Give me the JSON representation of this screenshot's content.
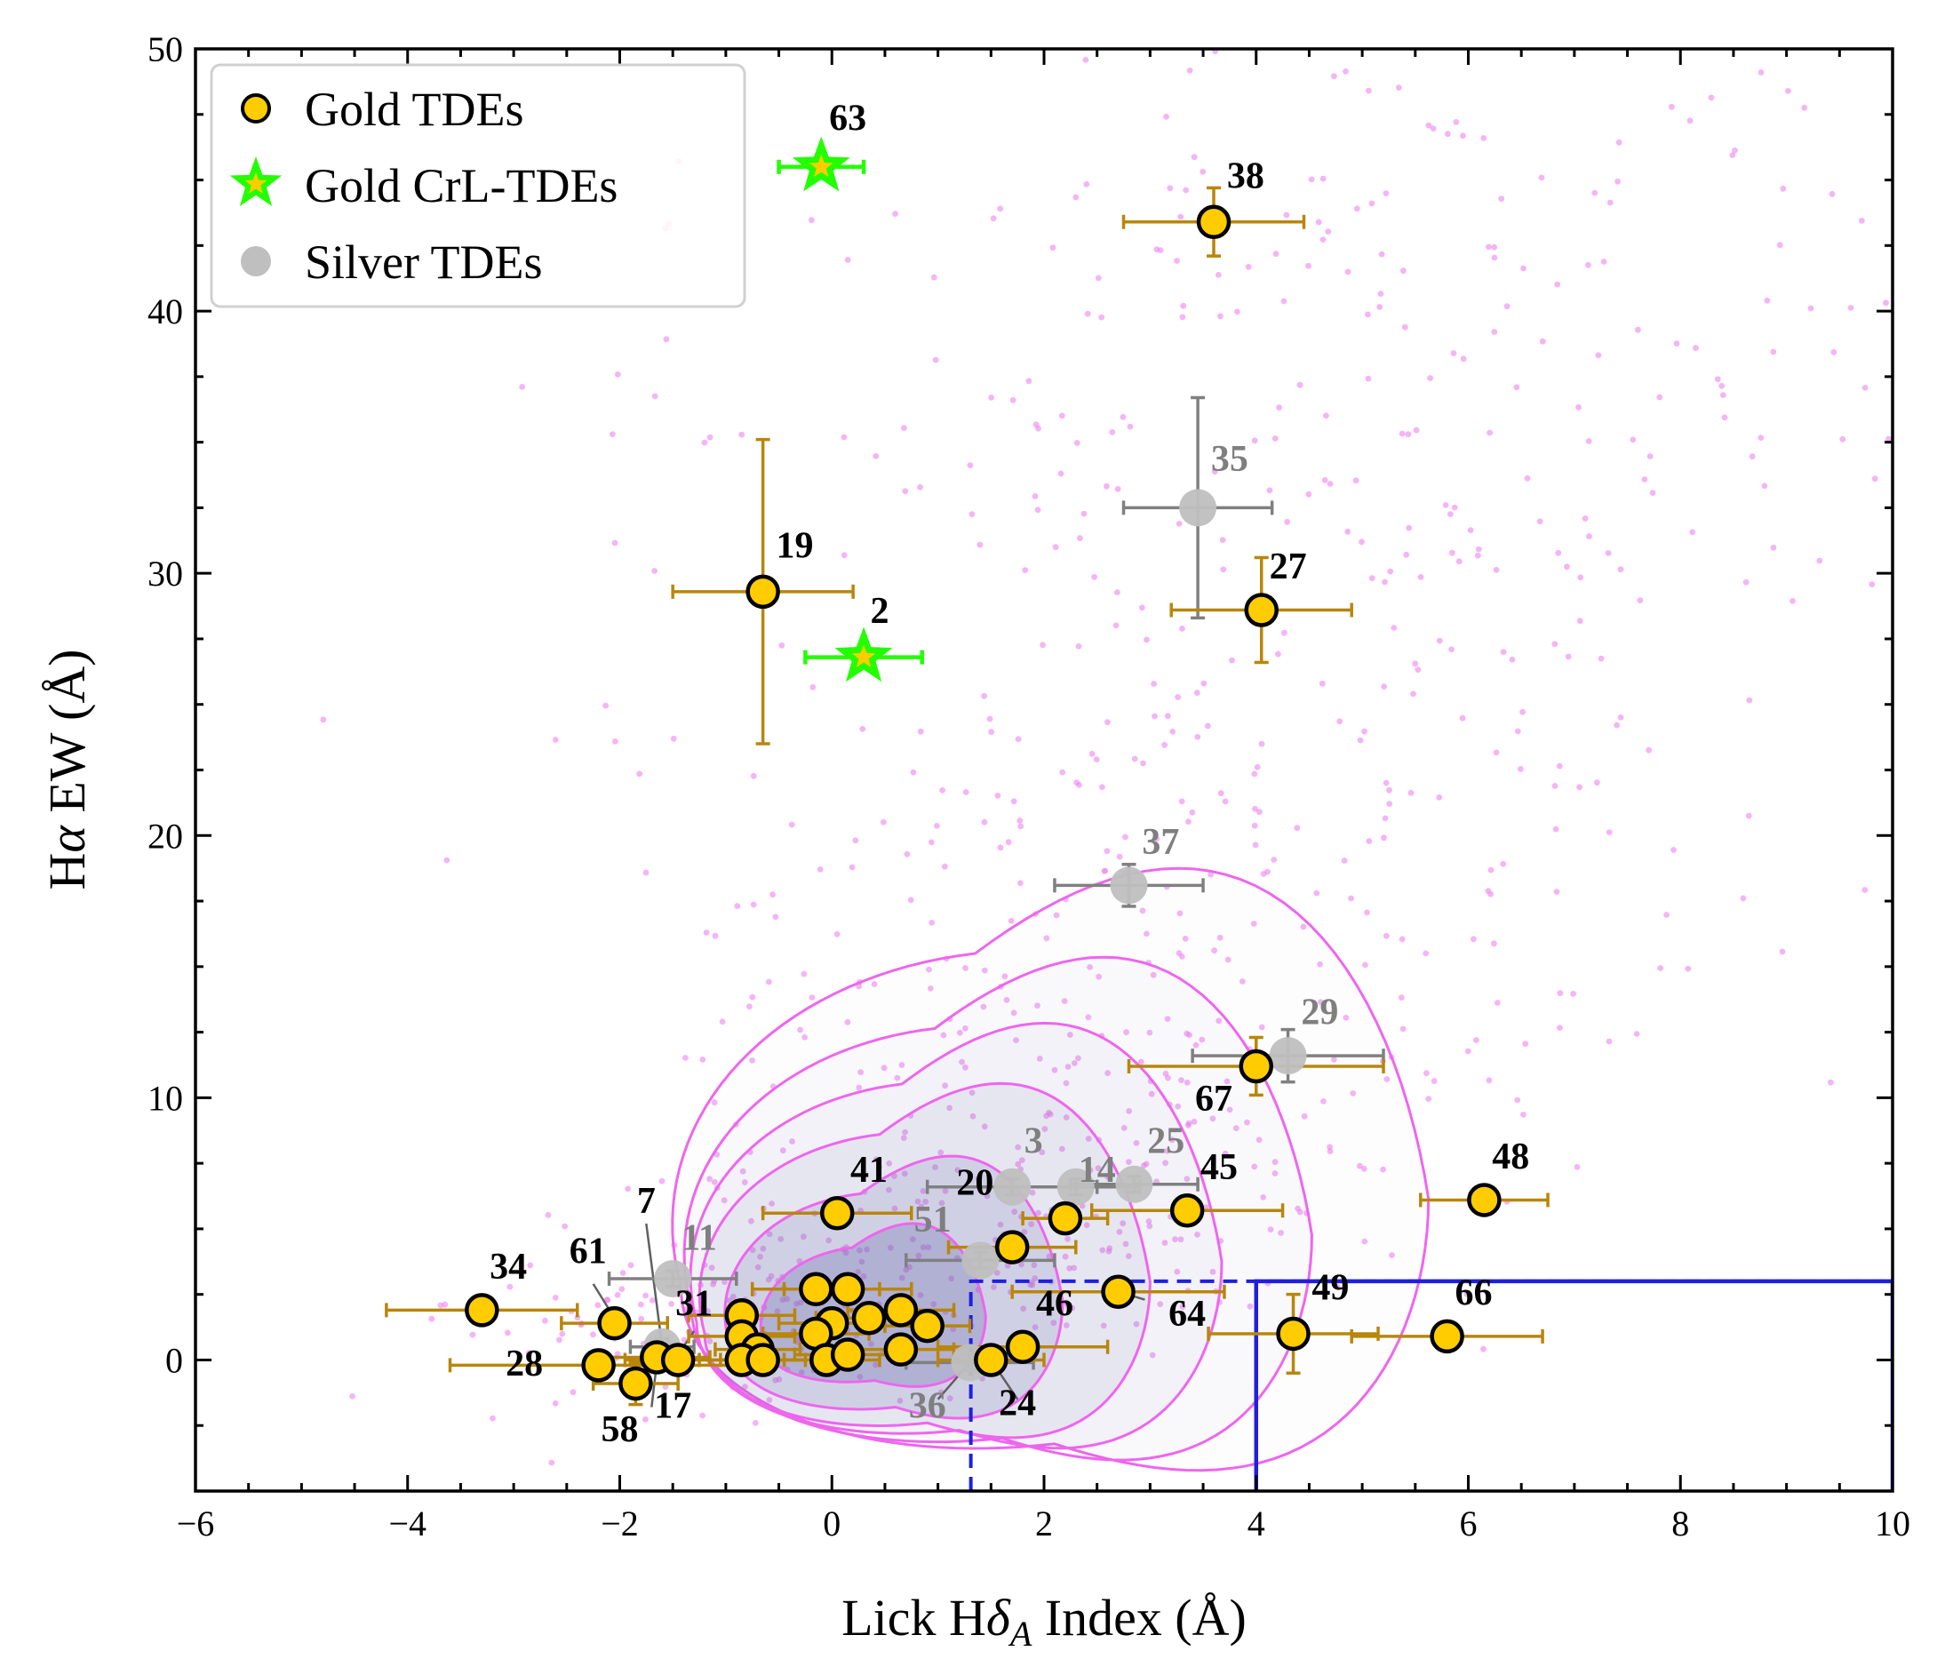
{
  "chart_data": {
    "type": "scatter",
    "xlabel": "Lick Hδ_A Index (Å)",
    "xlabel_parts": {
      "pre": "Lick H",
      "greek": "δ",
      "sub": "A",
      "post": " Index (Å)"
    },
    "ylabel": "Hα EW (Å)",
    "ylabel_parts": {
      "pre": "H",
      "greek": "α",
      "post": " EW (Å)"
    },
    "xlim": [
      -6,
      10
    ],
    "ylim": [
      -5,
      50
    ],
    "xticks": [
      -6,
      -4,
      -2,
      0,
      2,
      4,
      6,
      8,
      10
    ],
    "xtick_labels": [
      "−6",
      "−4",
      "−2",
      "0",
      "2",
      "4",
      "6",
      "8",
      "10"
    ],
    "yticks": [
      0,
      10,
      20,
      30,
      40,
      50
    ],
    "ytick_labels": [
      "0",
      "10",
      "20",
      "30",
      "40",
      "50"
    ],
    "grid": false,
    "legend": {
      "position": "top-left",
      "entries": [
        {
          "label": "Gold TDEs",
          "marker": "circle",
          "color": "#ffcc00"
        },
        {
          "label": "Gold CrL-TDEs",
          "marker": "star",
          "color": "#22ff00"
        },
        {
          "label": "Silver TDEs",
          "marker": "circle",
          "color": "#bfbfbf"
        }
      ]
    },
    "colors": {
      "gold_fill": "#ffcc00",
      "gold_err": "#b8860b",
      "crl_star": "#22ff00",
      "silver_fill": "#bfbfbf",
      "silver_err": "#808080",
      "silver_label": "#7f7f7f",
      "background_points": "#ee82ee",
      "contour_line": "#ee66ee",
      "contour_fill": "#7070b0",
      "selection_box": "#1f1fe0"
    },
    "series": [
      {
        "name": "Gold TDEs",
        "points": [
          {
            "id": "38",
            "x": 3.6,
            "y": 43.4,
            "xerr": 0.85,
            "yerr": 1.3
          },
          {
            "id": "19",
            "x": -0.65,
            "y": 29.3,
            "xerr": 0.85,
            "yerr": 5.8
          },
          {
            "id": "27",
            "x": 4.05,
            "y": 28.6,
            "xerr": 0.85,
            "yerr": 2.0
          },
          {
            "id": "67",
            "x": 4.0,
            "y": 11.2,
            "xerr": 1.2,
            "yerr": 1.1
          },
          {
            "id": "48",
            "x": 6.15,
            "y": 6.1,
            "xerr": 0.6,
            "yerr": 0.3
          },
          {
            "id": "41",
            "x": 0.05,
            "y": 5.6,
            "xerr": 0.7,
            "yerr": 0.3
          },
          {
            "id": "45",
            "x": 3.35,
            "y": 5.7,
            "xerr": 0.9,
            "yerr": 0.3
          },
          {
            "id": "20",
            "x": 1.7,
            "y": 4.3,
            "xerr": 0.6,
            "yerr": 0.3
          },
          {
            "id": "",
            "x": 2.2,
            "y": 5.4,
            "xerr": 0.4,
            "yerr": 0.3
          },
          {
            "id": "34",
            "x": -3.3,
            "y": 1.9,
            "xerr": 0.9,
            "yerr": 0.3
          },
          {
            "id": "61",
            "x": -2.05,
            "y": 1.4,
            "xerr": 0.5,
            "yerr": 0.3
          },
          {
            "id": "28",
            "x": -2.2,
            "y": -0.2,
            "xerr": 1.4,
            "yerr": 0.3
          },
          {
            "id": "58",
            "x": -1.85,
            "y": -0.9,
            "xerr": 0.4,
            "yerr": 0.8
          },
          {
            "id": "17",
            "x": -1.65,
            "y": 0.1,
            "xerr": 0.5,
            "yerr": 0.3
          },
          {
            "id": "31",
            "x": -1.45,
            "y": 0.0,
            "xerr": 0.5,
            "yerr": 0.3
          },
          {
            "id": "",
            "x": -0.85,
            "y": 1.7,
            "xerr": 0.5,
            "yerr": 0.3
          },
          {
            "id": "",
            "x": -0.85,
            "y": 0.9,
            "xerr": 0.5,
            "yerr": 0.3
          },
          {
            "id": "",
            "x": -0.7,
            "y": 0.4,
            "xerr": 0.4,
            "yerr": 0.3
          },
          {
            "id": "",
            "x": -0.85,
            "y": 0.0,
            "xerr": 0.4,
            "yerr": 0.3
          },
          {
            "id": "",
            "x": -0.65,
            "y": 0.0,
            "xerr": 0.4,
            "yerr": 0.3
          },
          {
            "id": "",
            "x": -0.15,
            "y": 2.7,
            "xerr": 0.6,
            "yerr": 0.3
          },
          {
            "id": "",
            "x": 0.15,
            "y": 2.7,
            "xerr": 0.6,
            "yerr": 0.3
          },
          {
            "id": "",
            "x": 0.0,
            "y": 1.4,
            "xerr": 0.5,
            "yerr": 0.3
          },
          {
            "id": "",
            "x": -0.15,
            "y": 1.0,
            "xerr": 0.5,
            "yerr": 0.3
          },
          {
            "id": "",
            "x": -0.05,
            "y": 0.0,
            "xerr": 0.5,
            "yerr": 0.3
          },
          {
            "id": "",
            "x": 0.15,
            "y": 0.2,
            "xerr": 0.5,
            "yerr": 0.3
          },
          {
            "id": "",
            "x": 0.35,
            "y": 1.6,
            "xerr": 0.5,
            "yerr": 0.3
          },
          {
            "id": "",
            "x": 0.65,
            "y": 1.9,
            "xerr": 0.5,
            "yerr": 0.3
          },
          {
            "id": "",
            "x": 0.9,
            "y": 1.3,
            "xerr": 0.4,
            "yerr": 0.3
          },
          {
            "id": "",
            "x": 0.65,
            "y": 0.4,
            "xerr": 0.5,
            "yerr": 0.3
          },
          {
            "id": "46",
            "x": 1.8,
            "y": 0.5,
            "xerr": 0.8,
            "yerr": 0.3
          },
          {
            "id": "24",
            "x": 1.5,
            "y": 0.0,
            "xerr": 0.5,
            "yerr": 0.3
          },
          {
            "id": "64",
            "x": 2.7,
            "y": 2.6,
            "xerr": 1.0,
            "yerr": 0.3
          },
          {
            "id": "49",
            "x": 4.35,
            "y": 1.0,
            "xerr": 0.8,
            "yerr": 1.5
          },
          {
            "id": "66",
            "x": 5.8,
            "y": 0.9,
            "xerr": 0.9,
            "yerr": 0.3
          }
        ]
      },
      {
        "name": "Gold CrL-TDEs",
        "points": [
          {
            "id": "63",
            "x": -0.1,
            "y": 45.5,
            "xerr": 0.4,
            "yerr": 0.3
          },
          {
            "id": "2",
            "x": 0.3,
            "y": 26.8,
            "xerr": 0.55,
            "yerr": 0.3
          }
        ]
      },
      {
        "name": "Silver TDEs",
        "points": [
          {
            "id": "35",
            "x": 3.45,
            "y": 32.5,
            "xerr": 0.7,
            "yerr": 4.2
          },
          {
            "id": "37",
            "x": 2.8,
            "y": 18.1,
            "xerr": 0.7,
            "yerr": 0.8
          },
          {
            "id": "29",
            "x": 4.3,
            "y": 11.6,
            "xerr": 0.9,
            "yerr": 1.0
          },
          {
            "id": "3",
            "x": 1.7,
            "y": 6.6,
            "xerr": 0.8,
            "yerr": 0.3
          },
          {
            "id": "14",
            "x": 2.3,
            "y": 6.6,
            "xerr": 0.6,
            "yerr": 0.3
          },
          {
            "id": "25",
            "x": 2.85,
            "y": 6.7,
            "xerr": 0.6,
            "yerr": 0.3
          },
          {
            "id": "51",
            "x": 1.4,
            "y": 3.8,
            "xerr": 0.7,
            "yerr": 0.3
          },
          {
            "id": "11",
            "x": -1.5,
            "y": 3.1,
            "xerr": 0.6,
            "yerr": 0.3
          },
          {
            "id": "36",
            "x": 1.3,
            "y": -0.1,
            "xerr": 0.6,
            "yerr": 0.3
          },
          {
            "id": "7",
            "x": -1.6,
            "y": 0.5,
            "xerr": 0.3,
            "yerr": 0.3
          }
        ]
      }
    ],
    "point_labels": [
      {
        "id": "63",
        "lx": 0.15,
        "ly": 46.9,
        "color": "black"
      },
      {
        "id": "38",
        "lx": 3.9,
        "ly": 44.7,
        "color": "black"
      },
      {
        "id": "19",
        "lx": -0.35,
        "ly": 30.6,
        "color": "black"
      },
      {
        "id": "2",
        "lx": 0.45,
        "ly": 28.1,
        "color": "black"
      },
      {
        "id": "27",
        "lx": 4.3,
        "ly": 29.8,
        "color": "black"
      },
      {
        "id": "35",
        "lx": 3.75,
        "ly": 33.9,
        "color": "gray"
      },
      {
        "id": "37",
        "lx": 3.1,
        "ly": 19.3,
        "color": "gray"
      },
      {
        "id": "29",
        "lx": 4.6,
        "ly": 12.8,
        "color": "gray"
      },
      {
        "id": "67",
        "lx": 3.6,
        "ly": 9.5,
        "color": "black"
      },
      {
        "id": "48",
        "lx": 6.4,
        "ly": 7.3,
        "color": "black"
      },
      {
        "id": "3",
        "lx": 1.9,
        "ly": 7.9,
        "color": "gray"
      },
      {
        "id": "25",
        "lx": 3.15,
        "ly": 7.9,
        "color": "gray"
      },
      {
        "id": "14",
        "lx": 2.5,
        "ly": 6.8,
        "color": "gray"
      },
      {
        "id": "45",
        "lx": 3.65,
        "ly": 6.9,
        "color": "black"
      },
      {
        "id": "20",
        "lx": 1.35,
        "ly": 6.3,
        "color": "black"
      },
      {
        "id": "41",
        "lx": 0.35,
        "ly": 6.8,
        "color": "black"
      },
      {
        "id": "51",
        "lx": 0.95,
        "ly": 4.9,
        "color": "gray"
      },
      {
        "id": "11",
        "lx": -1.25,
        "ly": 4.2,
        "color": "gray"
      },
      {
        "id": "7",
        "lx": -1.75,
        "ly": 5.6,
        "color": "black"
      },
      {
        "id": "61",
        "lx": -2.3,
        "ly": 3.7,
        "color": "black"
      },
      {
        "id": "34",
        "lx": -3.05,
        "ly": 3.1,
        "color": "black"
      },
      {
        "id": "31",
        "lx": -1.3,
        "ly": 1.7,
        "color": "black"
      },
      {
        "id": "28",
        "lx": -2.9,
        "ly": -0.6,
        "color": "black"
      },
      {
        "id": "17",
        "lx": -1.5,
        "ly": -2.2,
        "color": "black"
      },
      {
        "id": "58",
        "lx": -2.0,
        "ly": -3.1,
        "color": "black"
      },
      {
        "id": "46",
        "lx": 2.1,
        "ly": 1.7,
        "color": "black"
      },
      {
        "id": "64",
        "lx": 3.35,
        "ly": 1.3,
        "color": "black"
      },
      {
        "id": "36",
        "lx": 0.9,
        "ly": -2.2,
        "color": "gray"
      },
      {
        "id": "24",
        "lx": 1.75,
        "ly": -2.1,
        "color": "black"
      },
      {
        "id": "49",
        "lx": 4.7,
        "ly": 2.3,
        "color": "black"
      },
      {
        "id": "66",
        "lx": 6.05,
        "ly": 2.1,
        "color": "black"
      }
    ],
    "leader_lines": [
      {
        "from": [
          -1.75,
          5.2
        ],
        "to": [
          -1.6,
          0.5
        ]
      },
      {
        "from": [
          -2.25,
          2.9
        ],
        "to": [
          -2.05,
          1.6
        ]
      },
      {
        "from": [
          -1.3,
          1.1
        ],
        "to": [
          -1.45,
          0.2
        ]
      },
      {
        "from": [
          -1.7,
          -1.8
        ],
        "to": [
          -1.65,
          -0.1
        ]
      },
      {
        "from": [
          2.95,
          2.3
        ],
        "to": [
          2.7,
          2.6
        ]
      },
      {
        "from": [
          1.0,
          -1.5
        ],
        "to": [
          1.3,
          -0.1
        ]
      },
      {
        "from": [
          1.75,
          -1.5
        ],
        "to": [
          1.5,
          0.0
        ]
      }
    ],
    "selection_region": {
      "dashed": {
        "x0": 1.31,
        "x1": 10,
        "y0": -5,
        "y1": 3
      },
      "solid": {
        "x0": 4,
        "x1": 10,
        "y0": -5,
        "y1": 3
      }
    },
    "density_contours": {
      "levels": [
        {
          "cx": 0.4,
          "cy": 1.2,
          "a": 1.4,
          "bq": 1.4,
          "bp": 0.9,
          "opacity": 0.32
        },
        {
          "cx": 0.6,
          "cy": 1.5,
          "a": 2.1,
          "bq": 2.2,
          "bp": 1.5,
          "opacity": 0.18
        },
        {
          "cx": 0.9,
          "cy": 2.0,
          "a": 2.8,
          "bq": 3.0,
          "bp": 2.0,
          "opacity": 0.09
        },
        {
          "cx": 1.2,
          "cy": 2.6,
          "a": 3.3,
          "bq": 3.6,
          "bp": 2.4,
          "opacity": 0.05
        },
        {
          "cx": 1.6,
          "cy": 3.4,
          "a": 3.9,
          "bq": 4.2,
          "bp": 2.9,
          "opacity": 0.03
        },
        {
          "cx": 2.1,
          "cy": 4.5,
          "a": 4.7,
          "bq": 5.0,
          "bp": 3.5,
          "opacity": 0.015
        }
      ],
      "spine": [
        [
          -2.0,
          0.7
        ],
        [
          0.0,
          1.6
        ],
        [
          1.5,
          4.5
        ],
        [
          2.5,
          9.0
        ],
        [
          3.3,
          16.0
        ],
        [
          4.0,
          26.0
        ],
        [
          4.8,
          36.0
        ],
        [
          5.6,
          47.5
        ]
      ]
    },
    "background_points_count": 900
  }
}
